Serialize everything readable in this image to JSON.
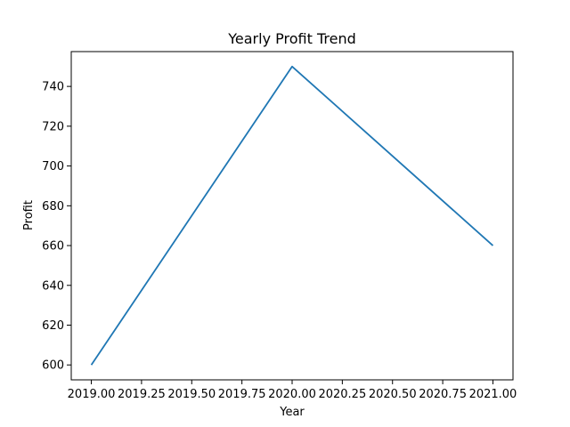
{
  "chart_data": {
    "type": "line",
    "title": "Yearly Profit Trend",
    "xlabel": "Year",
    "ylabel": "Profit",
    "xlim": [
      2018.9,
      2021.1
    ],
    "ylim": [
      592.5,
      757.5
    ],
    "x_ticks": [
      2019.0,
      2019.25,
      2019.5,
      2019.75,
      2020.0,
      2020.25,
      2020.5,
      2020.75,
      2021.0
    ],
    "x_tick_labels": [
      "2019.00",
      "2019.25",
      "2019.50",
      "2019.75",
      "2020.00",
      "2020.25",
      "2020.50",
      "2020.75",
      "2021.00"
    ],
    "y_ticks": [
      600,
      620,
      640,
      660,
      680,
      700,
      720,
      740
    ],
    "y_tick_labels": [
      "600",
      "620",
      "640",
      "660",
      "680",
      "700",
      "720",
      "740"
    ],
    "grid": false,
    "series": [
      {
        "x": [
          2019,
          2020,
          2021
        ],
        "values": [
          600,
          750,
          660
        ],
        "color": "#1f77b4"
      }
    ]
  }
}
